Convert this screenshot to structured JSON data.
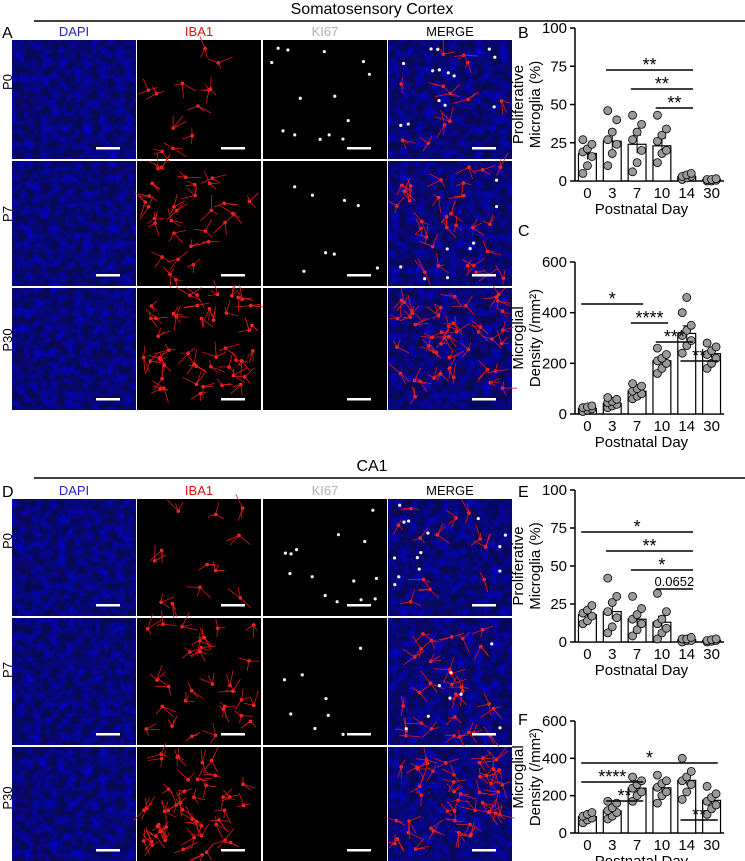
{
  "sections": [
    {
      "title": "Somatosensory Cortex",
      "micro_letter": "A"
    },
    {
      "title": "CA1",
      "micro_letter": "D"
    }
  ],
  "channels": [
    {
      "label": "DAPI",
      "color": "#2323c8"
    },
    {
      "label": "IBA1",
      "color": "#e01010"
    },
    {
      "label": "KI67",
      "color": "#b0b0b0"
    },
    {
      "label": "MERGE",
      "color": "#000000"
    }
  ],
  "ages": [
    "P0",
    "P7",
    "P30"
  ],
  "chart_data": [
    {
      "panel": "B",
      "type": "bar",
      "ylabel_lines": [
        "Proliferative",
        "Microglia (%)"
      ],
      "xlabel": "Postnatal Day",
      "categories": [
        "0",
        "3",
        "7",
        "10",
        "14",
        "30"
      ],
      "values": [
        18,
        26,
        24,
        23,
        3,
        1
      ],
      "errors": [
        4,
        5,
        6,
        5,
        1,
        0.5
      ],
      "points": [
        [
          5,
          10,
          16,
          19,
          21,
          24,
          27
        ],
        [
          10,
          18,
          24,
          27,
          32,
          40,
          46
        ],
        [
          6,
          12,
          20,
          27,
          32,
          37,
          43
        ],
        [
          12,
          18,
          20,
          26,
          30,
          34,
          43
        ],
        [
          1,
          2,
          3,
          3,
          4,
          5
        ],
        [
          0,
          0,
          0.5,
          1,
          1,
          1.5
        ]
      ],
      "ylim": [
        0,
        100
      ],
      "yticks": [
        0,
        25,
        50,
        75,
        100
      ],
      "sig": [
        {
          "from": 1,
          "to": 4,
          "label": "**"
        },
        {
          "from": 2,
          "to": 4,
          "label": "**"
        },
        {
          "from": 3,
          "to": 4,
          "label": "**"
        }
      ]
    },
    {
      "panel": "C",
      "type": "bar",
      "ylabel_lines": [
        "Microglial",
        "Density (/mm²)"
      ],
      "xlabel": "Postnatal Day",
      "categories": [
        "0",
        "3",
        "7",
        "10",
        "14",
        "30"
      ],
      "values": [
        22,
        42,
        90,
        210,
        318,
        238
      ],
      "errors": [
        4,
        7,
        10,
        15,
        30,
        18
      ],
      "points": [
        [
          10,
          15,
          20,
          25,
          28,
          32
        ],
        [
          25,
          32,
          38,
          45,
          50,
          58,
          65
        ],
        [
          60,
          70,
          80,
          90,
          100,
          110,
          120
        ],
        [
          160,
          180,
          200,
          210,
          220,
          235,
          260
        ],
        [
          240,
          270,
          290,
          310,
          330,
          350,
          400,
          460
        ],
        [
          180,
          200,
          220,
          235,
          250,
          265,
          280
        ]
      ],
      "ylim": [
        0,
        600
      ],
      "yticks": [
        0,
        200,
        400,
        600
      ],
      "sig": [
        {
          "from": 0,
          "to": 2,
          "label": "*"
        },
        {
          "from": 2,
          "to": 3,
          "label": "****"
        },
        {
          "from": 3,
          "to": 4,
          "label": "***"
        },
        {
          "from": 4,
          "to": 5,
          "label": "**"
        }
      ]
    },
    {
      "panel": "E",
      "type": "bar",
      "ylabel_lines": [
        "Proliferative",
        "Microglia (%)"
      ],
      "xlabel": "Postnatal Day",
      "categories": [
        "0",
        "3",
        "7",
        "10",
        "14",
        "30"
      ],
      "values": [
        18,
        20,
        15,
        13,
        1.5,
        1
      ],
      "errors": [
        2,
        5,
        4,
        4,
        0.8,
        0.5
      ],
      "points": [
        [
          12,
          14,
          17,
          19,
          21,
          24
        ],
        [
          6,
          10,
          16,
          20,
          26,
          30,
          42
        ],
        [
          4,
          8,
          12,
          15,
          18,
          22,
          30
        ],
        [
          2,
          6,
          9,
          12,
          15,
          20,
          32
        ],
        [
          0,
          1,
          1,
          2,
          2,
          3
        ],
        [
          0,
          0.5,
          1,
          1,
          1.5,
          2
        ]
      ],
      "ylim": [
        0,
        100
      ],
      "yticks": [
        0,
        25,
        50,
        75,
        100
      ],
      "sig": [
        {
          "from": 0,
          "to": 4,
          "label": "*"
        },
        {
          "from": 1,
          "to": 4,
          "label": "**"
        },
        {
          "from": 2,
          "to": 4,
          "label": "*"
        },
        {
          "from": 3,
          "to": 4,
          "label": "0.0652"
        }
      ]
    },
    {
      "panel": "F",
      "type": "bar",
      "ylabel_lines": [
        "Microglial",
        "Density (/mm²)"
      ],
      "xlabel": "Postnatal Day",
      "categories": [
        "0",
        "3",
        "7",
        "10",
        "14",
        "30"
      ],
      "values": [
        88,
        118,
        240,
        242,
        282,
        175
      ],
      "errors": [
        8,
        15,
        20,
        18,
        28,
        18
      ],
      "points": [
        [
          55,
          70,
          80,
          90,
          100,
          110
        ],
        [
          75,
          90,
          110,
          120,
          135,
          160,
          170
        ],
        [
          170,
          200,
          220,
          240,
          260,
          280,
          300
        ],
        [
          160,
          200,
          220,
          245,
          265,
          280,
          310
        ],
        [
          180,
          220,
          260,
          280,
          300,
          330,
          400
        ],
        [
          100,
          130,
          150,
          170,
          190,
          210,
          250
        ]
      ],
      "ylim": [
        0,
        600
      ],
      "yticks": [
        0,
        200,
        400,
        600
      ],
      "sig": [
        {
          "from": 0,
          "to": 5,
          "label": "*"
        },
        {
          "from": 0,
          "to": 2,
          "label": "****"
        },
        {
          "from": 1,
          "to": 2,
          "label": "**"
        },
        {
          "from": 4,
          "to": 5,
          "label": "**"
        }
      ]
    }
  ]
}
